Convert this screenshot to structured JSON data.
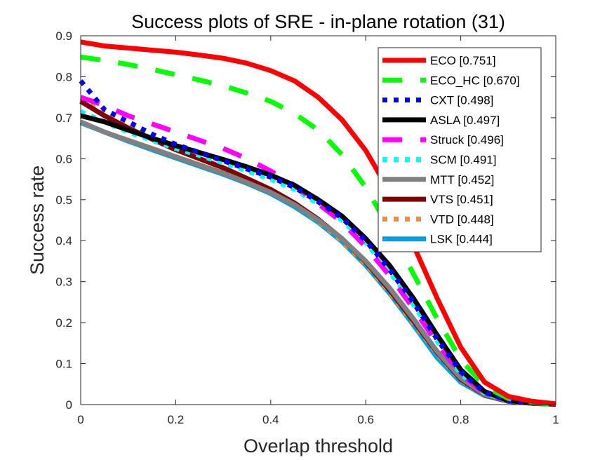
{
  "chart_data": {
    "type": "line",
    "title": "Success plots of SRE - in-plane rotation (31)",
    "xlabel": "Overlap threshold",
    "ylabel": "Success rate",
    "xlim": [
      0,
      1
    ],
    "ylim": [
      0,
      0.9
    ],
    "xticks": [
      "0",
      "0.2",
      "0.4",
      "0.6",
      "0.8",
      "1"
    ],
    "xtick_values": [
      0,
      0.2,
      0.4,
      0.6,
      0.8,
      1
    ],
    "yticks": [
      "0",
      "0.1",
      "0.2",
      "0.3",
      "0.4",
      "0.5",
      "0.6",
      "0.7",
      "0.8",
      "0.9"
    ],
    "ytick_values": [
      0,
      0.1,
      0.2,
      0.3,
      0.4,
      0.5,
      0.6,
      0.7,
      0.8,
      0.9
    ],
    "grid": false,
    "legend_position": "top-right",
    "x": [
      0,
      0.05,
      0.1,
      0.15,
      0.2,
      0.25,
      0.3,
      0.35,
      0.4,
      0.45,
      0.5,
      0.55,
      0.6,
      0.65,
      0.7,
      0.75,
      0.8,
      0.85,
      0.9,
      0.95,
      1.0
    ],
    "series": [
      {
        "name": "ECO",
        "label": "ECO [0.751]",
        "color": "#ff0000",
        "style": "solid",
        "values": [
          0.885,
          0.875,
          0.87,
          0.865,
          0.86,
          0.853,
          0.845,
          0.833,
          0.815,
          0.79,
          0.75,
          0.695,
          0.62,
          0.52,
          0.39,
          0.26,
          0.14,
          0.055,
          0.02,
          0.008,
          0.002
        ]
      },
      {
        "name": "ECO_HC",
        "label": "ECO_HC [0.670]",
        "color": "#00ff00",
        "style": "dashed",
        "values": [
          0.848,
          0.84,
          0.83,
          0.818,
          0.805,
          0.792,
          0.778,
          0.76,
          0.74,
          0.71,
          0.67,
          0.61,
          0.53,
          0.43,
          0.32,
          0.21,
          0.11,
          0.045,
          0.015,
          0.005,
          0.001
        ]
      },
      {
        "name": "CXT",
        "label": "CXT [0.498]",
        "color": "#0000ff",
        "style": "dotted",
        "values": [
          0.79,
          0.72,
          0.69,
          0.66,
          0.635,
          0.615,
          0.595,
          0.575,
          0.555,
          0.53,
          0.495,
          0.455,
          0.4,
          0.33,
          0.25,
          0.16,
          0.08,
          0.03,
          0.01,
          0.004,
          0.001
        ]
      },
      {
        "name": "ASLA",
        "label": "ASLA [0.497]",
        "color": "#000000",
        "style": "solid",
        "values": [
          0.705,
          0.69,
          0.67,
          0.65,
          0.632,
          0.615,
          0.598,
          0.58,
          0.56,
          0.535,
          0.5,
          0.46,
          0.405,
          0.34,
          0.26,
          0.17,
          0.085,
          0.032,
          0.01,
          0.004,
          0.001
        ]
      },
      {
        "name": "Struck",
        "label": "Struck [0.496]",
        "color": "#ff00ff",
        "style": "dashed",
        "values": [
          0.75,
          0.73,
          0.705,
          0.685,
          0.665,
          0.645,
          0.625,
          0.6,
          0.57,
          0.535,
          0.49,
          0.445,
          0.385,
          0.315,
          0.235,
          0.15,
          0.075,
          0.028,
          0.01,
          0.004,
          0.001
        ]
      },
      {
        "name": "SCM",
        "label": "SCM [0.491]",
        "color": "#00ffff",
        "style": "dotted",
        "values": [
          0.715,
          0.69,
          0.665,
          0.645,
          0.625,
          0.608,
          0.59,
          0.57,
          0.55,
          0.525,
          0.49,
          0.45,
          0.395,
          0.325,
          0.245,
          0.155,
          0.075,
          0.028,
          0.01,
          0.004,
          0.001
        ]
      },
      {
        "name": "MTT",
        "label": "MTT [0.452]",
        "color": "#808080",
        "style": "solid",
        "values": [
          0.69,
          0.665,
          0.645,
          0.625,
          0.605,
          0.585,
          0.565,
          0.542,
          0.518,
          0.488,
          0.45,
          0.405,
          0.35,
          0.285,
          0.21,
          0.13,
          0.065,
          0.025,
          0.009,
          0.003,
          0.001
        ]
      },
      {
        "name": "VTS",
        "label": "VTS [0.451]",
        "color": "#800000",
        "style": "solid",
        "values": [
          0.74,
          0.705,
          0.675,
          0.648,
          0.622,
          0.6,
          0.578,
          0.552,
          0.525,
          0.492,
          0.452,
          0.405,
          0.348,
          0.28,
          0.205,
          0.128,
          0.062,
          0.024,
          0.008,
          0.003,
          0.001
        ]
      },
      {
        "name": "VTD",
        "label": "VTD [0.448]",
        "color": "#ff8c2e",
        "style": "dotted",
        "values": [
          0.745,
          0.71,
          0.678,
          0.65,
          0.624,
          0.6,
          0.577,
          0.55,
          0.522,
          0.488,
          0.448,
          0.4,
          0.343,
          0.275,
          0.2,
          0.125,
          0.06,
          0.023,
          0.008,
          0.003,
          0.001
        ]
      },
      {
        "name": "LSK",
        "label": "LSK [0.444]",
        "color": "#009fe3",
        "style": "solid",
        "values": [
          0.688,
          0.665,
          0.643,
          0.622,
          0.602,
          0.582,
          0.562,
          0.54,
          0.515,
          0.483,
          0.445,
          0.398,
          0.34,
          0.272,
          0.195,
          0.115,
          0.055,
          0.022,
          0.008,
          0.003,
          0.001
        ]
      }
    ]
  }
}
